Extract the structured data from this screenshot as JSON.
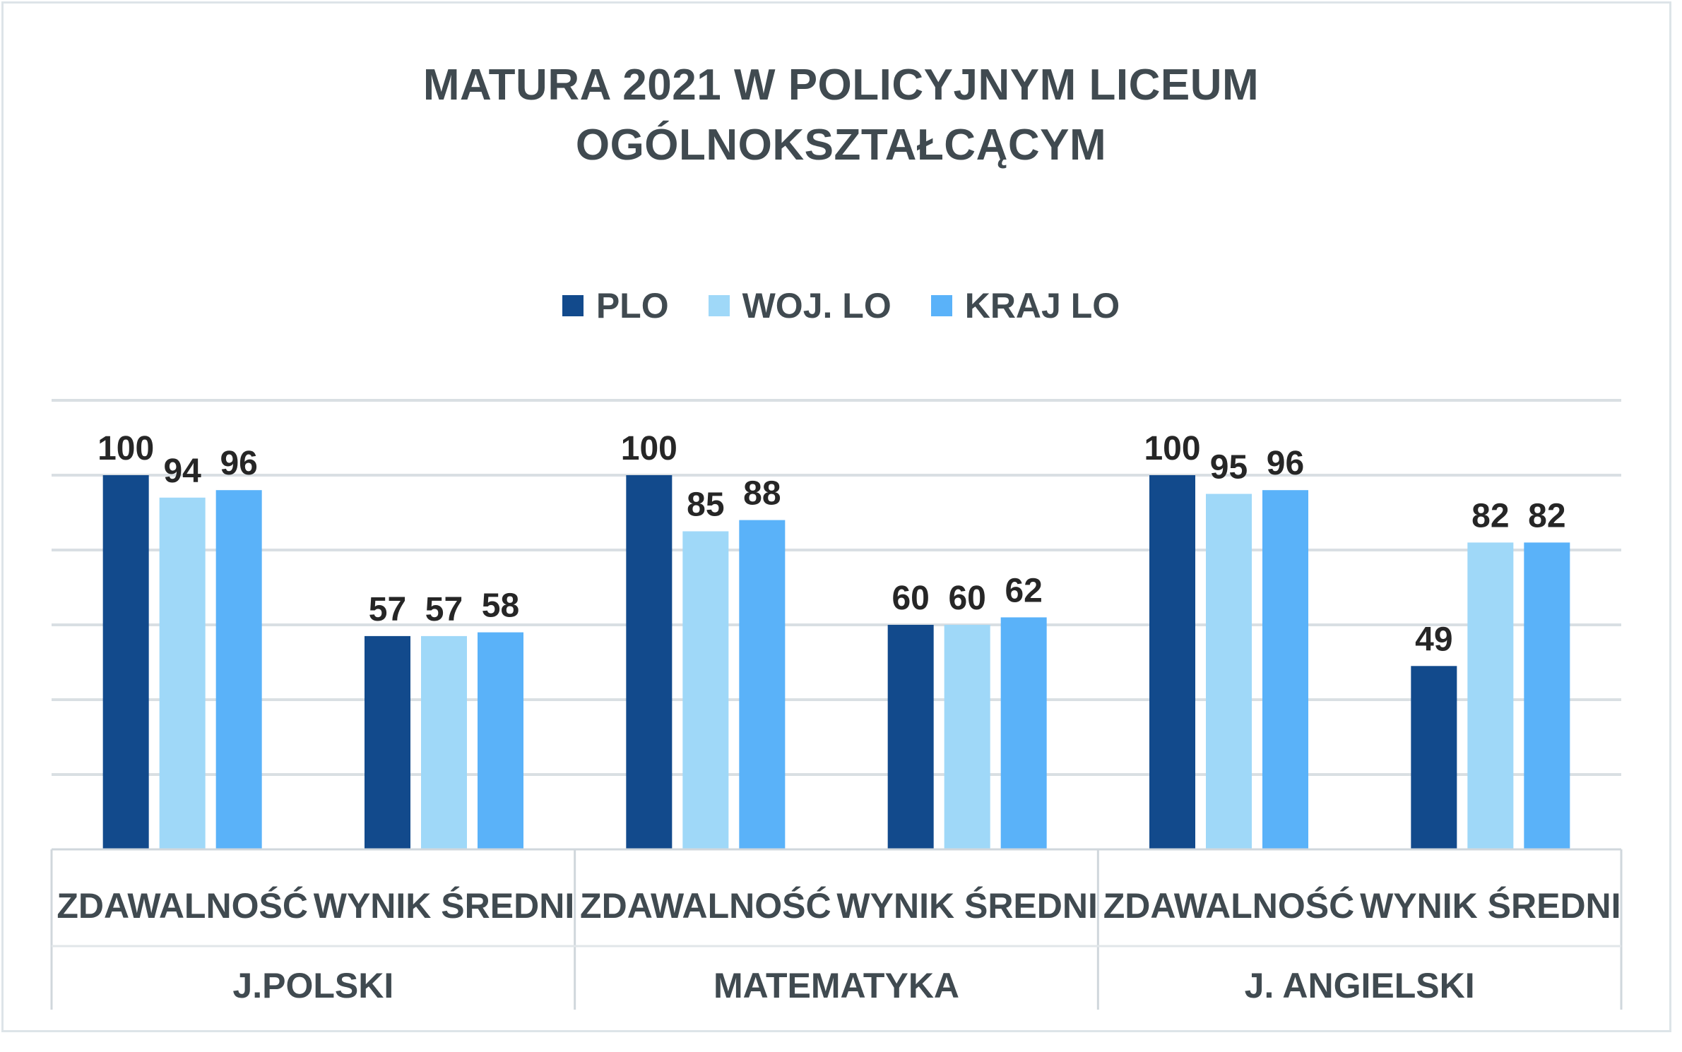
{
  "chart_data": {
    "type": "bar",
    "title_lines": [
      "MATURA 2021  W POLICYJNYM LICEUM",
      "OGÓLNOKSZTAŁCĄCYM"
    ],
    "legend_placement": "top",
    "grid": true,
    "ylim": [
      0,
      120
    ],
    "series": [
      {
        "name": "PLO",
        "color": "#124a8c",
        "values": [
          100,
          57,
          100,
          60,
          100,
          49
        ]
      },
      {
        "name": "WOJ. LO",
        "color": "#9fd8f8",
        "values": [
          94,
          57,
          85,
          60,
          95,
          82
        ]
      },
      {
        "name": "KRAJ LO",
        "color": "#5ab2f9",
        "values": [
          96,
          58,
          88,
          62,
          96,
          82
        ]
      }
    ],
    "categories": [
      "ZDAWALNOŚĆ",
      "WYNIK ŚREDNI",
      "ZDAWALNOŚĆ",
      "WYNIK ŚREDNI",
      "ZDAWALNOŚĆ",
      "WYNIK ŚREDNI"
    ],
    "groups": [
      "J.POLSKI",
      "MATEMATYKA",
      "J. ANGIELSKI"
    ]
  }
}
